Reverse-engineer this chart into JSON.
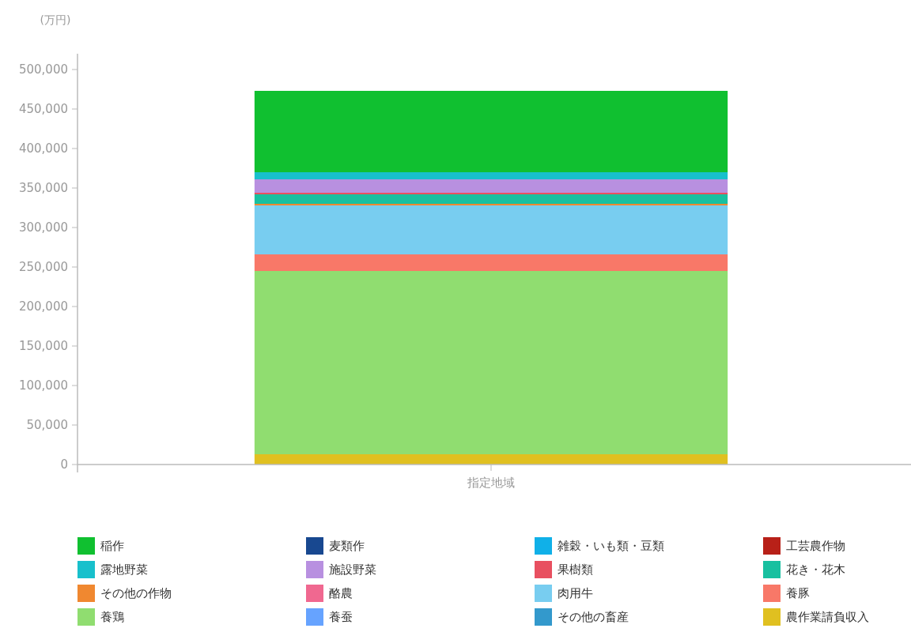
{
  "chart_data": {
    "type": "bar",
    "stacked": true,
    "ylabel": "(万円)",
    "categories": [
      "指定地域"
    ],
    "ylim": [
      0,
      520000
    ],
    "yticks": [
      {
        "value": 0,
        "label": "0"
      },
      {
        "value": 50000,
        "label": "50,000"
      },
      {
        "value": 100000,
        "label": "100,000"
      },
      {
        "value": 150000,
        "label": "150,000"
      },
      {
        "value": 200000,
        "label": "200,000"
      },
      {
        "value": 250000,
        "label": "250,000"
      },
      {
        "value": 300000,
        "label": "300,000"
      },
      {
        "value": 350000,
        "label": "350,000"
      },
      {
        "value": 400000,
        "label": "400,000"
      },
      {
        "value": 450000,
        "label": "450,000"
      },
      {
        "value": 500000,
        "label": "500,000"
      }
    ],
    "legend": "bottom",
    "grid": false,
    "series": [
      {
        "name": "農作業請負収入",
        "color": "#e0c020",
        "values": [
          13000
        ]
      },
      {
        "name": "その他の畜産",
        "color": "#3399cc",
        "values": [
          0
        ]
      },
      {
        "name": "養蚕",
        "color": "#66a3ff",
        "values": [
          0
        ]
      },
      {
        "name": "養鶏",
        "color": "#90dd70",
        "values": [
          232000
        ]
      },
      {
        "name": "養豚",
        "color": "#f87868",
        "values": [
          21000
        ]
      },
      {
        "name": "肉用牛",
        "color": "#78cdf0",
        "values": [
          62000
        ]
      },
      {
        "name": "酪農",
        "color": "#f06890",
        "values": [
          0
        ]
      },
      {
        "name": "その他の作物",
        "color": "#f08830",
        "values": [
          2000
        ]
      },
      {
        "name": "花き・花木",
        "color": "#18c0a0",
        "values": [
          12000
        ]
      },
      {
        "name": "果樹類",
        "color": "#e85060",
        "values": [
          2000
        ]
      },
      {
        "name": "施設野菜",
        "color": "#b890e0",
        "values": [
          17000
        ]
      },
      {
        "name": "露地野菜",
        "color": "#18c0cc",
        "values": [
          9000
        ]
      },
      {
        "name": "工芸農作物",
        "color": "#b82018",
        "values": [
          0
        ]
      },
      {
        "name": "雑穀・いも類・豆類",
        "color": "#10b0e8",
        "values": [
          0
        ]
      },
      {
        "name": "麦類作",
        "color": "#184890",
        "values": [
          0
        ]
      },
      {
        "name": "稲作",
        "color": "#10c030",
        "values": [
          103000
        ]
      }
    ]
  }
}
